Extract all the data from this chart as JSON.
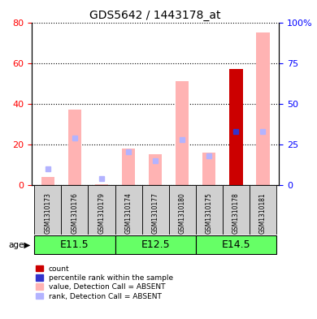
{
  "title": "GDS5642 / 1443178_at",
  "samples": [
    "GSM1310173",
    "GSM1310176",
    "GSM1310179",
    "GSM1310174",
    "GSM1310177",
    "GSM1310180",
    "GSM1310175",
    "GSM1310178",
    "GSM1310181"
  ],
  "age_groups": [
    {
      "label": "E11.5",
      "start": 0,
      "end": 3
    },
    {
      "label": "E12.5",
      "start": 3,
      "end": 6
    },
    {
      "label": "E14.5",
      "start": 6,
      "end": 9
    }
  ],
  "value_absent": [
    4.0,
    37.0,
    0.5,
    18.0,
    15.0,
    51.0,
    16.0,
    0.0,
    75.0
  ],
  "rank_absent": [
    10.0,
    29.0,
    4.0,
    20.5,
    15.0,
    28.0,
    18.0,
    0.0,
    33.0
  ],
  "count_val": [
    0,
    0,
    0,
    0,
    0,
    0,
    0,
    57.0,
    0
  ],
  "percentile_rank": [
    0,
    0,
    0,
    0,
    0,
    0,
    0,
    33.0,
    0
  ],
  "has_present": [
    false,
    false,
    false,
    false,
    false,
    false,
    false,
    true,
    false
  ],
  "ylim_left": [
    0,
    80
  ],
  "ylim_right": [
    0,
    100
  ],
  "yticks_left": [
    0,
    20,
    40,
    60,
    80
  ],
  "yticks_right": [
    0,
    25,
    50,
    75,
    100
  ],
  "color_value_absent": "#ffb3b3",
  "color_rank_absent": "#b3b3ff",
  "color_count": "#cc0000",
  "color_percentile": "#3333cc",
  "color_age_bg": "#66ff66",
  "color_sample_bg": "#d0d0d0",
  "bar_width": 0.5
}
